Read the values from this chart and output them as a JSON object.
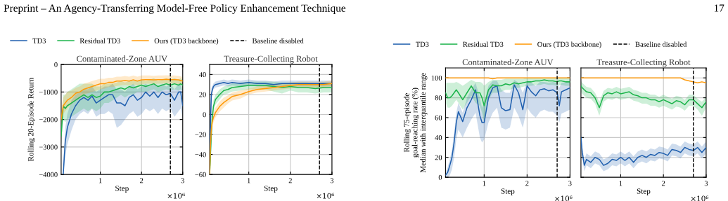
{
  "chart_data": [
    {
      "type": "line",
      "title": "Contaminated-Zone AUV",
      "xlabel": "Step",
      "ylabel": "Rolling 20-Episode Return",
      "annotations": [
        "Preprint – An Agency-Transferring Model-Free Policy Enhancement Technique",
        "17",
        "×10⁶"
      ],
      "x": [
        0.05,
        0.1,
        0.15,
        0.2,
        0.3,
        0.4,
        0.5,
        0.6,
        0.7,
        0.8,
        0.9,
        1.0,
        1.1,
        1.2,
        1.3,
        1.4,
        1.5,
        1.6,
        1.7,
        1.8,
        1.9,
        2.0,
        2.1,
        2.2,
        2.3,
        2.4,
        2.5,
        2.6,
        2.7,
        2.8,
        2.9,
        2.95,
        3.0
      ],
      "xlim": [
        0.05,
        3
      ],
      "xticks": [
        1,
        2,
        3
      ],
      "ylim": [
        -4000,
        0
      ],
      "yticks": [
        -4000,
        -3000,
        -2000,
        -1000,
        0
      ],
      "grid": true,
      "legend": "top",
      "line_style": "solid",
      "marker": "none",
      "ref_lines": [
        {
          "axis": "x",
          "value": 2.7,
          "label": "Baseline disabled",
          "color": "#000000",
          "line_style": "dashed"
        }
      ],
      "series": [
        {
          "name": "TD3",
          "color": "#1f5fae",
          "values": [
            null,
            -4000,
            -2800,
            -2300,
            -1800,
            -1500,
            -1300,
            -1200,
            -1300,
            -1150,
            -1400,
            -1300,
            -1200,
            -1100,
            -1100,
            -1400,
            -1400,
            -1500,
            -1200,
            -1100,
            -1300,
            -1200,
            -1000,
            -1150,
            -1000,
            -1200,
            -1000,
            -1100,
            -1050,
            -1300,
            -1000,
            -1000,
            -1500
          ],
          "lower": [
            null,
            -4000,
            -3300,
            -2900,
            -2400,
            -2000,
            -1800,
            -1700,
            -1800,
            -1600,
            -1900,
            -1800,
            -1800,
            -1700,
            -1800,
            -2300,
            -2200,
            -2000,
            -1800,
            -1700,
            -1900,
            -1800,
            -1600,
            -1700,
            -1600,
            -1800,
            -1600,
            -1700,
            -1600,
            -1900,
            -1700,
            -1600,
            -2000
          ],
          "upper": [
            null,
            -3500,
            -2300,
            -1800,
            -1300,
            -1100,
            -1000,
            -900,
            -900,
            -800,
            -1000,
            -900,
            -800,
            -800,
            -700,
            -900,
            -900,
            -1000,
            -800,
            -700,
            -900,
            -800,
            -700,
            -800,
            -700,
            -800,
            -700,
            -800,
            -700,
            -900,
            -700,
            -700,
            -1000
          ]
        },
        {
          "name": "Residual TD3",
          "color": "#1db44c",
          "values": [
            -2600,
            -1500,
            -1600,
            -1500,
            -1400,
            -1300,
            -1200,
            -1100,
            -1200,
            -1100,
            -1200,
            -1150,
            -1000,
            -1000,
            -950,
            -900,
            -850,
            -900,
            -800,
            -850,
            -800,
            -750,
            -800,
            -750,
            -700,
            -800,
            -750,
            -700,
            -750,
            -700,
            -750,
            -700,
            -750
          ],
          "lower": [
            -3000,
            -2000,
            -2100,
            -2000,
            -1900,
            -1800,
            -1700,
            -1600,
            -1700,
            -1600,
            -1700,
            -1600,
            -1400,
            -1400,
            -1300,
            -1200,
            -1100,
            -1200,
            -1100,
            -1100,
            -1000,
            -1000,
            -1000,
            -950,
            -900,
            -1000,
            -950,
            -900,
            -950,
            -900,
            -950,
            -900,
            -950
          ],
          "upper": [
            -2200,
            -1100,
            -1100,
            -1000,
            -900,
            -800,
            -700,
            -700,
            -700,
            -700,
            -800,
            -800,
            -700,
            -700,
            -700,
            -650,
            -600,
            -650,
            -600,
            -600,
            -600,
            -550,
            -600,
            -550,
            -500,
            -600,
            -550,
            -500,
            -550,
            -500,
            -550,
            -500,
            -550
          ]
        },
        {
          "name": "Ours (TD3 backbone)",
          "color": "#ff9a0a",
          "values": [
            -2000,
            -1500,
            -1400,
            -1300,
            -1200,
            -1050,
            -1000,
            -900,
            -850,
            -800,
            -750,
            -700,
            -700,
            -650,
            -650,
            -600,
            -600,
            -580,
            -600,
            -560,
            -600,
            -560,
            -550,
            -550,
            -560,
            -550,
            -550,
            -540,
            -550,
            -550,
            -560,
            -580,
            -600
          ],
          "lower": [
            -2400,
            -1800,
            -1700,
            -1600,
            -1450,
            -1300,
            -1200,
            -1100,
            -1050,
            -1000,
            -950,
            -900,
            -880,
            -820,
            -820,
            -780,
            -760,
            -740,
            -760,
            -720,
            -760,
            -720,
            -700,
            -700,
            -710,
            -700,
            -700,
            -690,
            -700,
            -700,
            -710,
            -730,
            -750
          ],
          "upper": [
            -1600,
            -1200,
            -1100,
            -1000,
            -950,
            -850,
            -800,
            -700,
            -650,
            -600,
            -560,
            -520,
            -520,
            -480,
            -480,
            -440,
            -440,
            -420,
            -440,
            -400,
            -440,
            -400,
            -400,
            -400,
            -410,
            -400,
            -400,
            -390,
            -400,
            -400,
            -410,
            -430,
            -450
          ]
        }
      ]
    },
    {
      "type": "line",
      "title": "Treasure-Collecting Robot",
      "xlabel": "Step",
      "annotations": [
        "×10⁶"
      ],
      "x": [
        0.06,
        0.08,
        0.1,
        0.12,
        0.15,
        0.2,
        0.3,
        0.4,
        0.5,
        0.6,
        0.8,
        1.0,
        1.2,
        1.4,
        1.6,
        1.8,
        2.0,
        2.2,
        2.4,
        2.6,
        2.8,
        3.0
      ],
      "xlim": [
        0.06,
        3
      ],
      "xticks": [
        1,
        2,
        3
      ],
      "ylim": [
        -60,
        50
      ],
      "yticks": [
        -60,
        -40,
        -20,
        0,
        20,
        40
      ],
      "grid": true,
      "line_style": "solid",
      "marker": "none",
      "ref_lines": [
        {
          "axis": "x",
          "value": 2.7,
          "color": "#000000",
          "line_style": "dashed"
        }
      ],
      "series": [
        {
          "color": "#1f5fae",
          "values": [
            -60,
            -10,
            20,
            24,
            28,
            30,
            31,
            32,
            31,
            32,
            31,
            32,
            31,
            31,
            30,
            31,
            31,
            31,
            31,
            31,
            31,
            31
          ],
          "lower": [
            -60,
            -20,
            14,
            20,
            25,
            27,
            28,
            29,
            28,
            29,
            28,
            29,
            28,
            28,
            27,
            28,
            28,
            28,
            28,
            28,
            28,
            28
          ],
          "upper": [
            -50,
            0,
            26,
            28,
            31,
            33,
            34,
            35,
            34,
            35,
            34,
            35,
            34,
            34,
            33,
            34,
            34,
            34,
            34,
            34,
            34,
            34
          ]
        },
        {
          "color": "#1db44c",
          "values": [
            -60,
            -40,
            -20,
            -5,
            8,
            15,
            20,
            24,
            25,
            27,
            28,
            29,
            29,
            29,
            28,
            27,
            28,
            27,
            27,
            26,
            27,
            27
          ],
          "lower": [
            -60,
            -50,
            -30,
            -12,
            2,
            10,
            15,
            20,
            21,
            23,
            24,
            25,
            25,
            25,
            23,
            21,
            24,
            22,
            22,
            21,
            22,
            22
          ],
          "upper": [
            -50,
            -30,
            -10,
            2,
            14,
            20,
            25,
            28,
            29,
            31,
            32,
            33,
            33,
            33,
            33,
            32,
            32,
            32,
            32,
            31,
            32,
            32
          ]
        },
        {
          "color": "#ff9a0a",
          "values": [
            -60,
            -30,
            -15,
            -8,
            -3,
            2,
            8,
            12,
            15,
            18,
            20,
            23,
            25,
            26,
            27,
            28,
            29,
            30,
            30,
            30,
            30,
            31
          ],
          "lower": [
            -60,
            -40,
            -22,
            -14,
            -8,
            -3,
            3,
            7,
            11,
            14,
            16,
            20,
            22,
            23,
            24,
            25,
            26,
            27,
            27,
            27,
            27,
            28
          ],
          "upper": [
            -50,
            -20,
            -8,
            -2,
            2,
            7,
            13,
            17,
            19,
            22,
            24,
            26,
            28,
            29,
            30,
            31,
            32,
            33,
            33,
            33,
            33,
            34
          ]
        }
      ]
    },
    {
      "type": "line",
      "title": "Contaminated-Zone AUV",
      "xlabel": "Step",
      "ylabel": "Rolling 75-episode\ngoal-reaching rate (%)\nMedian with interquantile range",
      "annotations": [
        "×10⁶"
      ],
      "x": [
        0.1,
        0.15,
        0.2,
        0.25,
        0.3,
        0.35,
        0.4,
        0.5,
        0.6,
        0.7,
        0.8,
        0.9,
        0.95,
        1.0,
        1.1,
        1.2,
        1.3,
        1.4,
        1.5,
        1.6,
        1.7,
        1.8,
        1.9,
        2.0,
        2.1,
        2.2,
        2.3,
        2.4,
        2.5,
        2.6,
        2.7,
        2.75,
        2.8,
        2.9,
        3.0
      ],
      "xlim": [
        0.1,
        3
      ],
      "xticks": [
        1,
        2,
        3
      ],
      "ylim": [
        0,
        110
      ],
      "yticks": [
        0,
        20,
        40,
        60,
        80,
        100
      ],
      "grid": true,
      "legend": "top",
      "line_style": "solid",
      "marker": "none",
      "ref_lines": [
        {
          "axis": "x",
          "value": 2.7,
          "label": "Baseline disabled",
          "color": "#000000",
          "line_style": "dashed"
        }
      ],
      "series": [
        {
          "name": "TD3",
          "color": "#1f5fae",
          "values": [
            2,
            5,
            12,
            20,
            35,
            55,
            66,
            56,
            70,
            78,
            88,
            62,
            55,
            55,
            80,
            90,
            92,
            70,
            67,
            68,
            93,
            85,
            68,
            92,
            86,
            82,
            88,
            89,
            87,
            88,
            85,
            72,
            86,
            88,
            90
          ],
          "lower": [
            0,
            0,
            2,
            8,
            20,
            38,
            48,
            40,
            50,
            58,
            65,
            40,
            35,
            38,
            55,
            65,
            70,
            50,
            48,
            50,
            70,
            62,
            50,
            70,
            64,
            60,
            66,
            68,
            66,
            66,
            62,
            55,
            64,
            66,
            68
          ],
          "upper": [
            6,
            10,
            18,
            28,
            45,
            65,
            75,
            65,
            80,
            88,
            95,
            80,
            70,
            75,
            92,
            97,
            97,
            88,
            85,
            85,
            98,
            95,
            85,
            97,
            95,
            92,
            96,
            96,
            95,
            96,
            95,
            90,
            95,
            96,
            97
          ]
        },
        {
          "name": "Residual TD3",
          "color": "#1db44c",
          "values": [
            85,
            80,
            80,
            82,
            85,
            88,
            85,
            78,
            85,
            92,
            85,
            85,
            80,
            72,
            88,
            93,
            92,
            92,
            94,
            93,
            95,
            94,
            95,
            96,
            96,
            97,
            97,
            98,
            97,
            97,
            96,
            97,
            97,
            96,
            96
          ],
          "lower": [
            75,
            70,
            70,
            72,
            75,
            78,
            75,
            68,
            75,
            82,
            75,
            72,
            65,
            55,
            78,
            85,
            85,
            86,
            88,
            88,
            90,
            90,
            91,
            92,
            92,
            93,
            93,
            94,
            93,
            93,
            92,
            93,
            93,
            92,
            92
          ],
          "upper": [
            95,
            95,
            95,
            95,
            95,
            96,
            95,
            92,
            95,
            98,
            96,
            96,
            95,
            92,
            96,
            98,
            98,
            98,
            99,
            99,
            99,
            99,
            99,
            100,
            100,
            100,
            100,
            100,
            100,
            100,
            100,
            100,
            100,
            100,
            100
          ]
        },
        {
          "name": "Ours (TD3 backbone)",
          "color": "#ff9a0a",
          "values": [
            100,
            100,
            100,
            100,
            100,
            100,
            100,
            100,
            100,
            100,
            100,
            100,
            100,
            100,
            100,
            99,
            100,
            100,
            100,
            100,
            100,
            100,
            100,
            100,
            100,
            100,
            100,
            100,
            100,
            100,
            100,
            100,
            100,
            100,
            100
          ]
        }
      ]
    },
    {
      "type": "line",
      "title": "Treasure-Collecting Robot",
      "xlabel": "Step",
      "annotations": [
        "×10⁶"
      ],
      "tick_labels": "x",
      "x": [
        0.07,
        0.1,
        0.15,
        0.2,
        0.3,
        0.4,
        0.5,
        0.6,
        0.7,
        0.8,
        0.9,
        1.0,
        1.1,
        1.2,
        1.3,
        1.4,
        1.5,
        1.6,
        1.7,
        1.8,
        1.9,
        2.0,
        2.1,
        2.2,
        2.3,
        2.4,
        2.5,
        2.6,
        2.7,
        2.8,
        2.9,
        3.0
      ],
      "xlim": [
        0.07,
        3
      ],
      "xticks": [
        1,
        2,
        3
      ],
      "ylim": [
        0,
        110
      ],
      "yticks": [
        0,
        20,
        40,
        60,
        80,
        100
      ],
      "grid": true,
      "line_style": "solid",
      "marker": "none",
      "ref_lines": [
        {
          "axis": "x",
          "value": 2.7,
          "color": "#000000",
          "line_style": "dashed"
        }
      ],
      "series": [
        {
          "color": "#1f5fae",
          "values": [
            40,
            25,
            12,
            18,
            15,
            20,
            18,
            12,
            14,
            18,
            17,
            20,
            17,
            20,
            15,
            20,
            22,
            20,
            23,
            22,
            25,
            24,
            22,
            28,
            27,
            25,
            30,
            28,
            27,
            30,
            25,
            30
          ],
          "lower": [
            34,
            19,
            6,
            12,
            9,
            14,
            12,
            6,
            8,
            12,
            11,
            14,
            11,
            14,
            9,
            14,
            16,
            14,
            17,
            16,
            19,
            18,
            16,
            22,
            21,
            19,
            24,
            22,
            21,
            24,
            19,
            24
          ],
          "upper": [
            46,
            31,
            18,
            24,
            21,
            26,
            24,
            18,
            20,
            24,
            23,
            26,
            23,
            26,
            21,
            26,
            28,
            26,
            29,
            28,
            31,
            30,
            28,
            34,
            33,
            31,
            36,
            34,
            33,
            36,
            31,
            36
          ]
        },
        {
          "color": "#1db44c",
          "values": [
            92,
            90,
            88,
            86,
            85,
            80,
            70,
            82,
            85,
            84,
            86,
            84,
            85,
            86,
            83,
            82,
            80,
            80,
            78,
            78,
            76,
            78,
            76,
            74,
            77,
            76,
            73,
            78,
            78,
            74,
            70,
            76
          ],
          "lower": [
            86,
            84,
            82,
            80,
            79,
            74,
            62,
            76,
            79,
            78,
            80,
            78,
            79,
            80,
            77,
            76,
            74,
            74,
            72,
            72,
            70,
            72,
            70,
            68,
            71,
            70,
            67,
            72,
            72,
            68,
            62,
            70
          ],
          "upper": [
            97,
            95,
            93,
            91,
            90,
            85,
            76,
            87,
            90,
            89,
            91,
            89,
            90,
            91,
            88,
            87,
            85,
            85,
            83,
            83,
            81,
            83,
            81,
            79,
            82,
            81,
            78,
            83,
            83,
            79,
            76,
            81
          ]
        },
        {
          "color": "#ff9a0a",
          "values": [
            100,
            100,
            100,
            100,
            100,
            100,
            100,
            100,
            100,
            100,
            100,
            100,
            100,
            100,
            100,
            100,
            100,
            100,
            100,
            100,
            100,
            100,
            100,
            100,
            100,
            100,
            98,
            97,
            96,
            95,
            96,
            95
          ]
        }
      ]
    }
  ]
}
